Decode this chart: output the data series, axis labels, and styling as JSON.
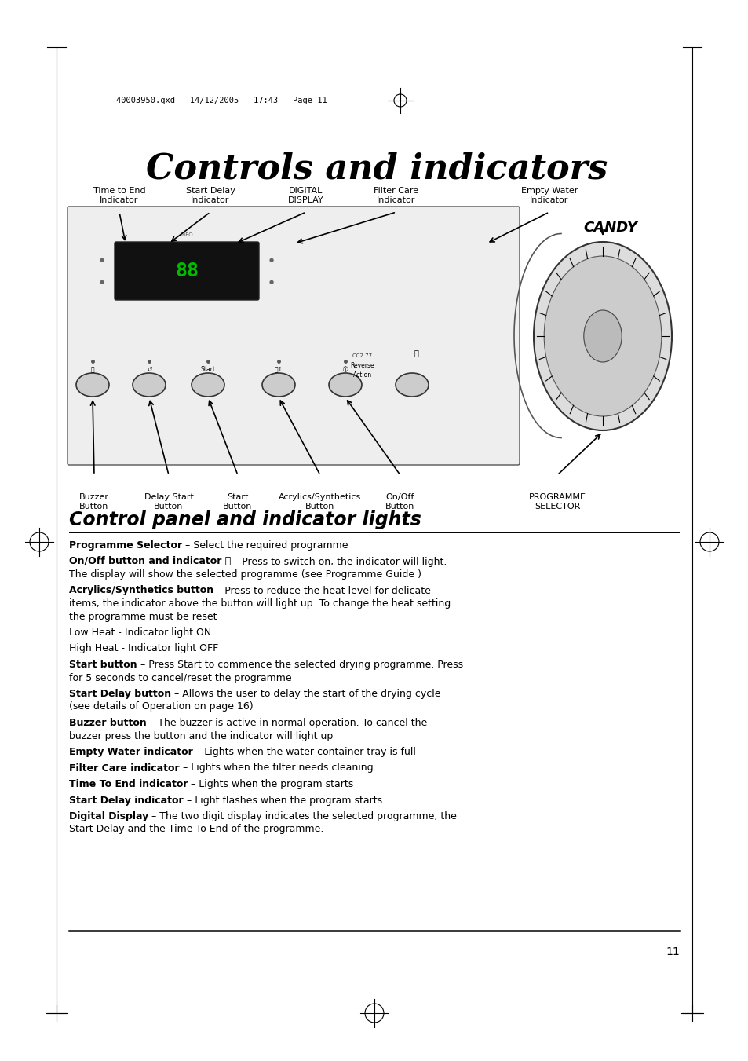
{
  "title": "Controls and indicators",
  "subtitle": "Control panel and indicator lights",
  "page_number": "11",
  "header_text": "40003950.qxd   14/12/2005   17:43   Page 11",
  "bg_color": "#ffffff",
  "top_labels": [
    "Time to End\nIndicator",
    "Start Delay\nIndicator",
    "DIGITAL\nDISPLAY",
    "Filter Care\nIndicator",
    "Empty Water\nIndicator"
  ],
  "bottom_labels": [
    "Buzzer\nButton",
    "Delay Start\nButton",
    "Start\nButton",
    "Acrylics/Synthetics\nButton",
    "On/Off\nButton",
    "PROGRAMME\nSELECTOR"
  ],
  "body": [
    {
      "bold": "Programme Selector",
      "normal": " – Select the required programme",
      "lines": 1
    },
    {
      "bold": "On/Off button and indicator ⓘ",
      "normal": " – Press to switch on, the indicator will light.\nThe display will show the selected programme (see Programme Guide )",
      "lines": 2
    },
    {
      "bold": "Acrylics/Synthetics button",
      "normal": " – Press to reduce the heat level for delicate\nitems, the indicator above the button will light up. To change the heat setting\nthe programme must be reset",
      "lines": 3
    },
    {
      "bold": "",
      "normal": "Low Heat - Indicator light ON",
      "lines": 1,
      "bold_end": "ON"
    },
    {
      "bold": "",
      "normal": "High Heat - Indicator light OFF",
      "lines": 1,
      "bold_end": "OFF"
    },
    {
      "bold": "Start button",
      "normal": " – Press Start to commence the selected drying programme. Press\nfor 5 seconds to cancel/reset the programme",
      "lines": 2
    },
    {
      "bold": "Start Delay button",
      "normal": " – Allows the user to delay the start of the drying cycle\n(see details of Operation on page 16)",
      "lines": 2
    },
    {
      "bold": "Buzzer button",
      "normal": " – The buzzer is active in normal operation. To cancel the\nbuzzer press the button and the indicator will light up",
      "lines": 2
    },
    {
      "bold": "Empty Water indicator",
      "normal": " – Lights when the water container tray is full",
      "lines": 1
    },
    {
      "bold": "Filter Care indicator",
      "normal": " – Lights when the filter needs cleaning",
      "lines": 1
    },
    {
      "bold": "Time To End indicator",
      "normal": " – Lights when the program starts",
      "lines": 1
    },
    {
      "bold": "Start Delay indicator",
      "normal": " – Light flashes when the program starts.",
      "lines": 1
    },
    {
      "bold": "Digital Display",
      "normal": " – The two digit display indicates the selected programme, the\nStart Delay and the Time To End of the programme.",
      "lines": 2
    }
  ]
}
